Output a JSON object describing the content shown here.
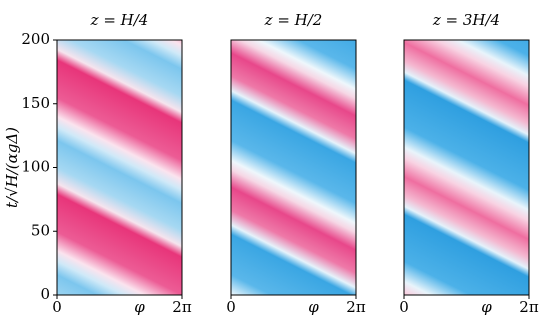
{
  "chart_data": [
    {
      "type": "heatmap",
      "title": "z = H/4",
      "ylabel": "t/√H/(αgΔ)",
      "xlabel": "φ",
      "xlim": [
        0,
        6.283185307
      ],
      "xticks": [
        0,
        {
          "value": 6.283185307,
          "label": "2π"
        }
      ],
      "ylim": [
        0,
        200
      ],
      "yticks": [
        0,
        50,
        100,
        150,
        200
      ]
    },
    {
      "type": "heatmap",
      "title": "z = H/2",
      "xlabel": "φ",
      "xlim": [
        0,
        6.283185307
      ],
      "xticks": [
        0,
        {
          "value": 6.283185307,
          "label": "2π"
        }
      ],
      "ylim": [
        0,
        200
      ]
    },
    {
      "type": "heatmap",
      "title": "z = 3H/4",
      "xlabel": "φ",
      "xlim": [
        0,
        6.283185307
      ],
      "xticks": [
        0,
        {
          "value": 6.283185307,
          "label": "2π"
        }
      ],
      "ylim": [
        0,
        200
      ]
    }
  ]
}
